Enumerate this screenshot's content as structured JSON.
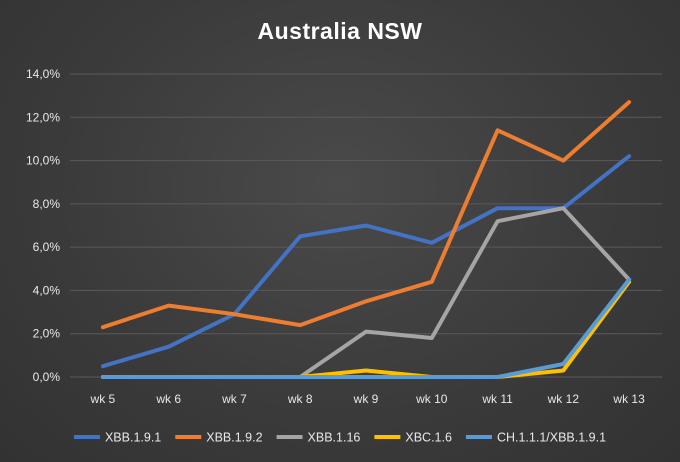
{
  "chart_data": {
    "type": "line",
    "title": "Australia NSW",
    "xlabel": "",
    "ylabel": "",
    "categories": [
      "wk 5",
      "wk 6",
      "wk 7",
      "wk 8",
      "wk 9",
      "wk 10",
      "wk 11",
      "wk 12",
      "wk 13"
    ],
    "ylim": [
      0,
      14
    ],
    "yticks": [
      0,
      2,
      4,
      6,
      8,
      10,
      12,
      14
    ],
    "ytick_labels": [
      "0,0%",
      "2,0%",
      "4,0%",
      "6,0%",
      "8,0%",
      "10,0%",
      "12,0%",
      "14,0%"
    ],
    "grid": true,
    "legend_position": "bottom",
    "series": [
      {
        "name": "XBB.1.9.1",
        "color": "#4472c4",
        "values": [
          0.5,
          1.4,
          2.9,
          6.5,
          7.0,
          6.2,
          7.8,
          7.8,
          10.2
        ]
      },
      {
        "name": "XBB.1.9.2",
        "color": "#ed7d31",
        "values": [
          2.3,
          3.3,
          2.9,
          2.4,
          3.5,
          4.4,
          11.4,
          10.0,
          12.7
        ]
      },
      {
        "name": "XBB.1.16",
        "color": "#a5a5a5",
        "values": [
          null,
          null,
          null,
          0.0,
          2.1,
          1.8,
          7.2,
          7.8,
          4.5
        ]
      },
      {
        "name": "XBC.1.6",
        "color": "#ffc000",
        "values": [
          0.0,
          0.0,
          0.0,
          0.0,
          0.3,
          0.0,
          0.0,
          0.3,
          4.4
        ]
      },
      {
        "name": "CH.1.1.1/XBB.1.9.1",
        "color": "#5b9bd5",
        "values": [
          0.0,
          0.0,
          0.0,
          0.0,
          0.0,
          0.0,
          0.0,
          0.6,
          4.5
        ]
      }
    ]
  }
}
